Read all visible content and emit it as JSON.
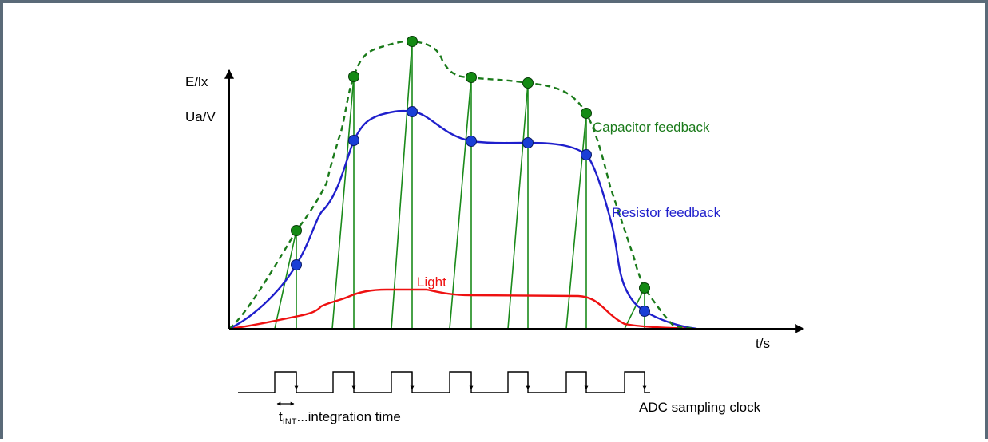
{
  "axes": {
    "y_label_top": "E/lx",
    "y_label_bottom": "Ua/V",
    "x_label": "t/s"
  },
  "curves": {
    "capacitor": {
      "label": "Capacitor feedback",
      "color": "#1a7a1a"
    },
    "resistor": {
      "label": "Resistor feedback",
      "color": "#1f1fcc"
    },
    "light": {
      "label": "Light",
      "color": "#ee1111"
    }
  },
  "clock": {
    "label": "ADC sampling clock",
    "tint_main": "t",
    "tint_sub": "INT",
    "tint_desc": "...integration time"
  },
  "marker_colors": {
    "capacitor": "#138a13",
    "resistor": "#1a3fd6"
  }
}
